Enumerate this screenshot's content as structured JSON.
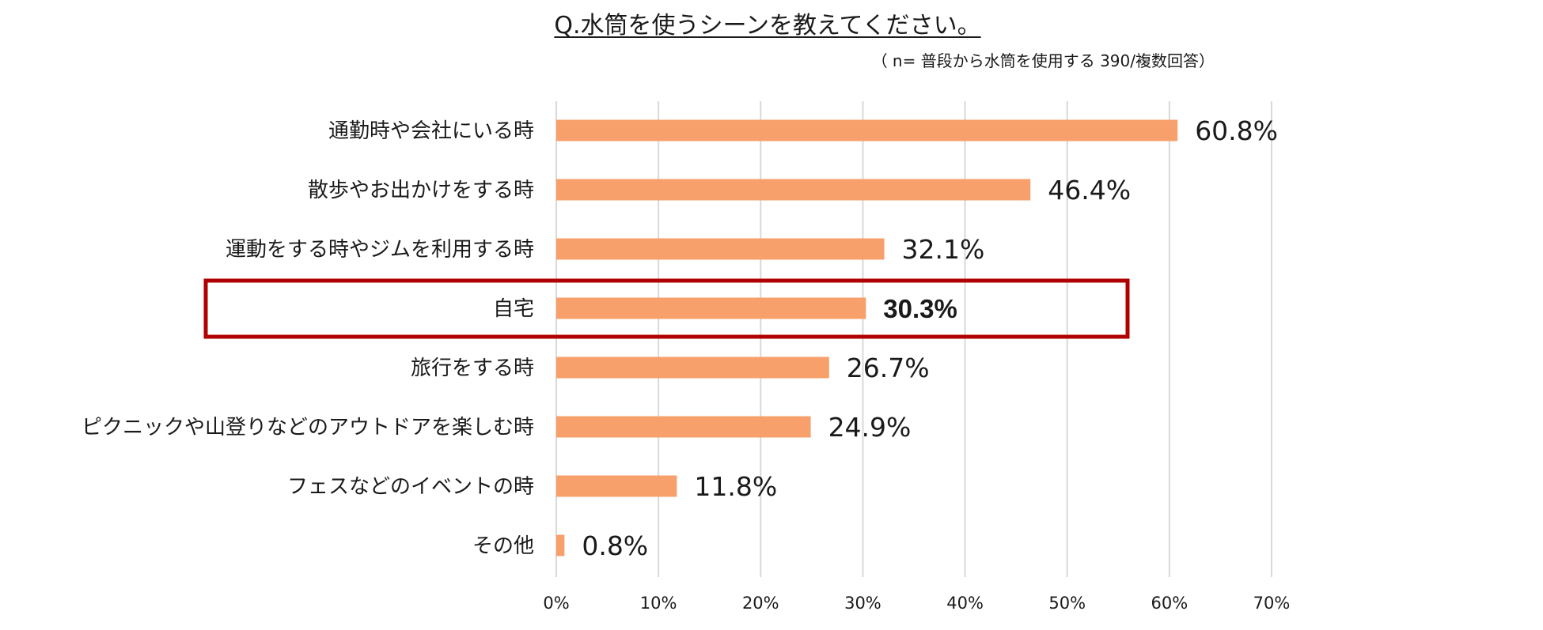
{
  "chart_data": {
    "type": "bar",
    "orientation": "horizontal",
    "title": "Q.水筒を使うシーンを教えてください。",
    "subtitle": "（ n= 普段から水筒を使用する 390/複数回答）",
    "categories": [
      "通勤時や会社にいる時",
      "散歩やお出かけをする時",
      "運動をする時やジムを利用する時",
      "自宅",
      "旅行をする時",
      "ピクニックや山登りなどのアウトドアを楽しむ時",
      "フェスなどのイベントの時",
      "その他"
    ],
    "values": [
      60.8,
      46.4,
      32.1,
      30.3,
      26.7,
      24.9,
      11.8,
      0.8
    ],
    "value_labels": [
      "60.8%",
      "46.4%",
      "32.1%",
      "30.3%",
      "26.7%",
      "24.9%",
      "11.8%",
      "0.8%"
    ],
    "highlighted_category": "自宅",
    "xlim": [
      0,
      70
    ],
    "x_ticks": [
      0,
      10,
      20,
      30,
      40,
      50,
      60,
      70
    ],
    "x_tick_labels": [
      "0%",
      "10%",
      "20%",
      "30%",
      "40%",
      "50%",
      "60%",
      "70%"
    ],
    "xlabel": "",
    "ylabel": "",
    "grid": true,
    "legend": "none",
    "bar_color": "#F7A06B",
    "highlight_box_color": "#B00000"
  }
}
